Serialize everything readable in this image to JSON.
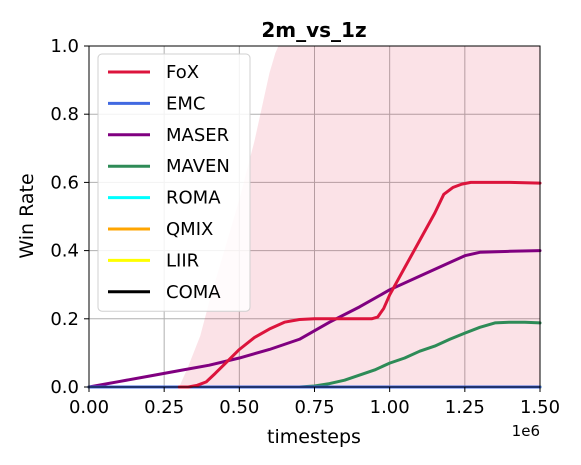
{
  "chart_data": {
    "type": "line",
    "title": "2m_vs_1z",
    "xlabel": "timesteps",
    "ylabel": "Win Rate",
    "x_offset_label": "1e6",
    "xlim": [
      0.0,
      1.5
    ],
    "ylim": [
      0.0,
      1.0
    ],
    "xticks": [
      0.0,
      0.25,
      0.5,
      0.75,
      1.0,
      1.25,
      1.5
    ],
    "xtick_labels": [
      "0.00",
      "0.25",
      "0.50",
      "0.75",
      "1.00",
      "1.25",
      "1.50"
    ],
    "yticks": [
      0.0,
      0.2,
      0.4,
      0.6,
      0.8,
      1.0
    ],
    "ytick_labels": [
      "0.0",
      "0.2",
      "0.4",
      "0.6",
      "0.8",
      "1.0"
    ],
    "grid": true,
    "legend_position": "top-left",
    "series": [
      {
        "name": "FoX",
        "color": "#dc143c",
        "x": [
          0.3,
          0.33,
          0.36,
          0.39,
          0.42,
          0.46,
          0.5,
          0.55,
          0.6,
          0.65,
          0.7,
          0.75,
          0.8,
          0.85,
          0.9,
          0.94,
          0.96,
          0.98,
          1.0,
          1.05,
          1.1,
          1.15,
          1.18,
          1.21,
          1.24,
          1.27,
          1.32,
          1.4,
          1.5
        ],
        "y": [
          0.0,
          0.0,
          0.005,
          0.015,
          0.04,
          0.075,
          0.11,
          0.145,
          0.17,
          0.19,
          0.198,
          0.2,
          0.2,
          0.2,
          0.2,
          0.2,
          0.205,
          0.23,
          0.27,
          0.35,
          0.43,
          0.51,
          0.565,
          0.585,
          0.595,
          0.6,
          0.6,
          0.6,
          0.598
        ]
      },
      {
        "name": "EMC",
        "color": "#4169e1",
        "x": [
          0.0,
          1.5
        ],
        "y": [
          0.0,
          0.0
        ]
      },
      {
        "name": "MASER",
        "color": "#800080",
        "x": [
          0.0,
          0.1,
          0.2,
          0.3,
          0.4,
          0.5,
          0.6,
          0.7,
          0.8,
          0.9,
          1.0,
          1.1,
          1.2,
          1.25,
          1.3,
          1.4,
          1.5
        ],
        "y": [
          0.0,
          0.016,
          0.032,
          0.048,
          0.064,
          0.085,
          0.11,
          0.14,
          0.19,
          0.235,
          0.285,
          0.325,
          0.365,
          0.385,
          0.395,
          0.398,
          0.4
        ]
      },
      {
        "name": "MAVEN",
        "color": "#2e8b57",
        "x": [
          0.0,
          0.7,
          0.75,
          0.8,
          0.85,
          0.9,
          0.95,
          1.0,
          1.05,
          1.1,
          1.15,
          1.2,
          1.25,
          1.3,
          1.35,
          1.4,
          1.45,
          1.5
        ],
        "y": [
          0.0,
          0.0,
          0.003,
          0.01,
          0.02,
          0.035,
          0.05,
          0.07,
          0.085,
          0.105,
          0.12,
          0.14,
          0.158,
          0.175,
          0.188,
          0.19,
          0.19,
          0.188
        ]
      },
      {
        "name": "ROMA",
        "color": "#00ffff",
        "x": [
          0.0,
          1.5
        ],
        "y": [
          0.0,
          0.0
        ]
      },
      {
        "name": "QMIX",
        "color": "#ffa500",
        "x": [
          0.0,
          1.5
        ],
        "y": [
          0.0,
          0.0
        ]
      },
      {
        "name": "LIIR",
        "color": "#ffff00",
        "x": [
          0.0,
          1.5
        ],
        "y": [
          0.0,
          0.0
        ]
      },
      {
        "name": "COMA",
        "color": "#000000",
        "x": [
          0.0,
          1.5
        ],
        "y": [
          0.0,
          0.0
        ]
      }
    ],
    "confidence_bands": [
      {
        "series": "FoX",
        "color": "#dc143c",
        "opacity": 0.12,
        "x": [
          0.3,
          0.33,
          0.37,
          0.4,
          0.45,
          0.5,
          0.55,
          0.58,
          0.6,
          0.62,
          0.63,
          1.5
        ],
        "upper": [
          0.0,
          0.06,
          0.15,
          0.25,
          0.4,
          0.55,
          0.72,
          0.84,
          0.92,
          0.98,
          1.0,
          1.0
        ],
        "lower": [
          0.0,
          0.0,
          0.0,
          0.0,
          0.0,
          0.0,
          0.0,
          0.0,
          0.0,
          0.0,
          0.0,
          0.0
        ]
      }
    ]
  }
}
